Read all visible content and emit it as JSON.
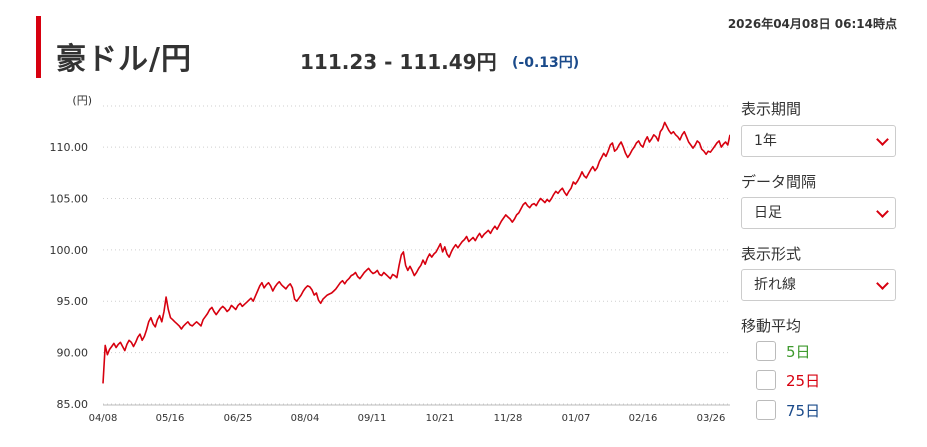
{
  "header": {
    "timestamp": "2026年04月08日 06:14時点",
    "title": "豪ドル/円",
    "price": "111.23 - 111.49円",
    "change": "(-0.13円)"
  },
  "controls": {
    "period_label": "表示期間",
    "period_value": "1年",
    "interval_label": "データ間隔",
    "interval_value": "日足",
    "format_label": "表示形式",
    "format_value": "折れ線",
    "ma_label": "移動平均",
    "ma_options": [
      {
        "label": "5日",
        "color": "#3f9a2e"
      },
      {
        "label": "25日",
        "color": "#d7000f"
      },
      {
        "label": "75日",
        "color": "#1a4a8a"
      }
    ]
  },
  "chart_data": {
    "type": "line",
    "unit_label": "(円)",
    "ylim": [
      85,
      114
    ],
    "y_ticks": [
      "85.00",
      "90.00",
      "95.00",
      "100.00",
      "105.00",
      "110.00"
    ],
    "x_ticks": [
      "04/08",
      "05/16",
      "06/25",
      "08/04",
      "09/11",
      "10/21",
      "11/28",
      "01/07",
      "02/16",
      "03/26"
    ],
    "line_color": "#d7000f",
    "grid": true,
    "series": [
      {
        "values": [
          87.0,
          90.7,
          89.8,
          90.3,
          90.6,
          90.9,
          90.5,
          90.8,
          91.0,
          90.6,
          90.2,
          90.8,
          91.2,
          91.0,
          90.6,
          91.0,
          91.5,
          91.8,
          91.2,
          91.6,
          92.2,
          93.0,
          93.4,
          92.8,
          92.5,
          93.2,
          93.6,
          93.0,
          94.0,
          95.4,
          94.2,
          93.4,
          93.2,
          93.0,
          92.8,
          92.6,
          92.3,
          92.6,
          92.8,
          93.0,
          92.7,
          92.6,
          92.8,
          93.0,
          92.8,
          92.6,
          93.2,
          93.5,
          93.8,
          94.2,
          94.4,
          94.0,
          93.7,
          94.0,
          94.3,
          94.5,
          94.3,
          94.0,
          94.2,
          94.6,
          94.4,
          94.2,
          94.6,
          94.8,
          94.5,
          94.7,
          94.9,
          95.1,
          95.3,
          95.0,
          95.5,
          96.0,
          96.5,
          96.8,
          96.3,
          96.6,
          96.8,
          96.5,
          96.0,
          96.4,
          96.7,
          96.9,
          96.6,
          96.4,
          96.2,
          96.5,
          96.7,
          96.3,
          95.2,
          95.0,
          95.3,
          95.6,
          96.0,
          96.3,
          96.5,
          96.4,
          96.1,
          95.6,
          95.8,
          95.1,
          94.8,
          95.2,
          95.4,
          95.6,
          95.7,
          95.8,
          96.0,
          96.2,
          96.5,
          96.8,
          97.0,
          96.7,
          97.0,
          97.2,
          97.5,
          97.6,
          97.8,
          97.4,
          97.2,
          97.5,
          97.8,
          98.0,
          98.2,
          97.9,
          97.7,
          97.8,
          98.0,
          97.6,
          97.5,
          97.8,
          97.6,
          97.4,
          97.2,
          97.6,
          97.5,
          97.3,
          98.5,
          99.5,
          99.8,
          98.5,
          98.0,
          98.4,
          98.0,
          97.5,
          97.8,
          98.2,
          98.5,
          99.0,
          98.6,
          99.2,
          99.6,
          99.3,
          99.6,
          99.8,
          100.2,
          100.6,
          99.8,
          100.3,
          99.6,
          99.3,
          99.8,
          100.2,
          100.5,
          100.2,
          100.5,
          100.8,
          101.0,
          101.3,
          100.8,
          101.0,
          101.2,
          100.9,
          101.3,
          101.6,
          101.2,
          101.5,
          101.7,
          101.9,
          101.6,
          102.0,
          102.3,
          102.0,
          102.4,
          102.8,
          103.1,
          103.4,
          103.2,
          103.0,
          102.7,
          103.0,
          103.4,
          103.6,
          104.0,
          104.4,
          104.6,
          104.3,
          104.1,
          104.4,
          104.5,
          104.3,
          104.7,
          105.0,
          104.8,
          104.6,
          104.9,
          104.7,
          105.0,
          105.4,
          105.7,
          105.5,
          105.8,
          106.0,
          105.6,
          105.3,
          105.7,
          106.0,
          106.6,
          106.4,
          106.7,
          107.1,
          107.6,
          107.2,
          107.0,
          107.4,
          107.8,
          108.1,
          107.7,
          108.0,
          108.6,
          109.0,
          109.4,
          109.1,
          109.6,
          110.2,
          110.4,
          109.6,
          109.8,
          110.2,
          110.5,
          110.0,
          109.4,
          109.0,
          109.3,
          109.7,
          110.0,
          110.4,
          110.6,
          110.2,
          110.0,
          110.6,
          111.0,
          110.5,
          110.8,
          111.2,
          111.0,
          110.6,
          111.5,
          111.8,
          112.4,
          112.0,
          111.6,
          111.3,
          111.5,
          111.2,
          111.0,
          110.7,
          111.2,
          111.5,
          111.0,
          110.5,
          110.2,
          109.9,
          110.2,
          110.6,
          110.4,
          109.8,
          109.6,
          109.3,
          109.6,
          109.5,
          109.8,
          110.1,
          110.4,
          110.6,
          110.0,
          110.3,
          110.5,
          110.2,
          111.2
        ]
      }
    ]
  }
}
